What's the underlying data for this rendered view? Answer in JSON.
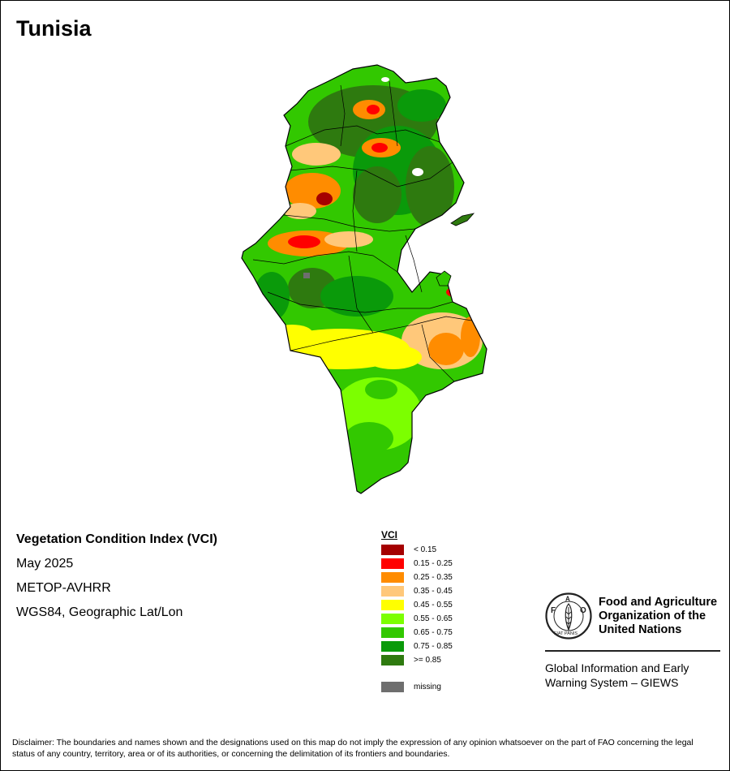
{
  "title": "Tunisia",
  "info": {
    "index_name": "Vegetation Condition Index (VCI)",
    "period": "May 2025",
    "sensor": "METOP-AVHRR",
    "projection": "WGS84, Geographic Lat/Lon"
  },
  "legend": {
    "title": "VCI",
    "classes": [
      {
        "label": "< 0.15",
        "color": "#a50000"
      },
      {
        "label": "0.15 - 0.25",
        "color": "#ff0000"
      },
      {
        "label": "0.25 - 0.35",
        "color": "#ff8c00"
      },
      {
        "label": "0.35 - 0.45",
        "color": "#ffc87a"
      },
      {
        "label": "0.45 - 0.55",
        "color": "#ffff00"
      },
      {
        "label": "0.55 - 0.65",
        "color": "#7cff00"
      },
      {
        "label": "0.65 - 0.75",
        "color": "#32c800"
      },
      {
        "label": "0.75 - 0.85",
        "color": "#0a9a0a"
      },
      {
        "label": ">= 0.85",
        "color": "#2e7a0f"
      }
    ],
    "missing": {
      "label": "missing",
      "color": "#6e6e6e"
    }
  },
  "fao": {
    "org_line1": "Food and Agriculture",
    "org_line2": "Organization of the",
    "org_line3": "United Nations",
    "giews_line1": "Global Information and Early",
    "giews_line2": "Warning System – GIEWS",
    "logo_letters": "FAO",
    "logo_motto": "FIAT PANIS"
  },
  "disclaimer": "Disclaimer: The boundaries and names shown and the designations used on this map do not imply the expression of any opinion whatsoever on the part of FAO concerning the legal status of any country, territory, area or of its authorities, or concerning the delimitation of its frontiers and boundaries."
}
